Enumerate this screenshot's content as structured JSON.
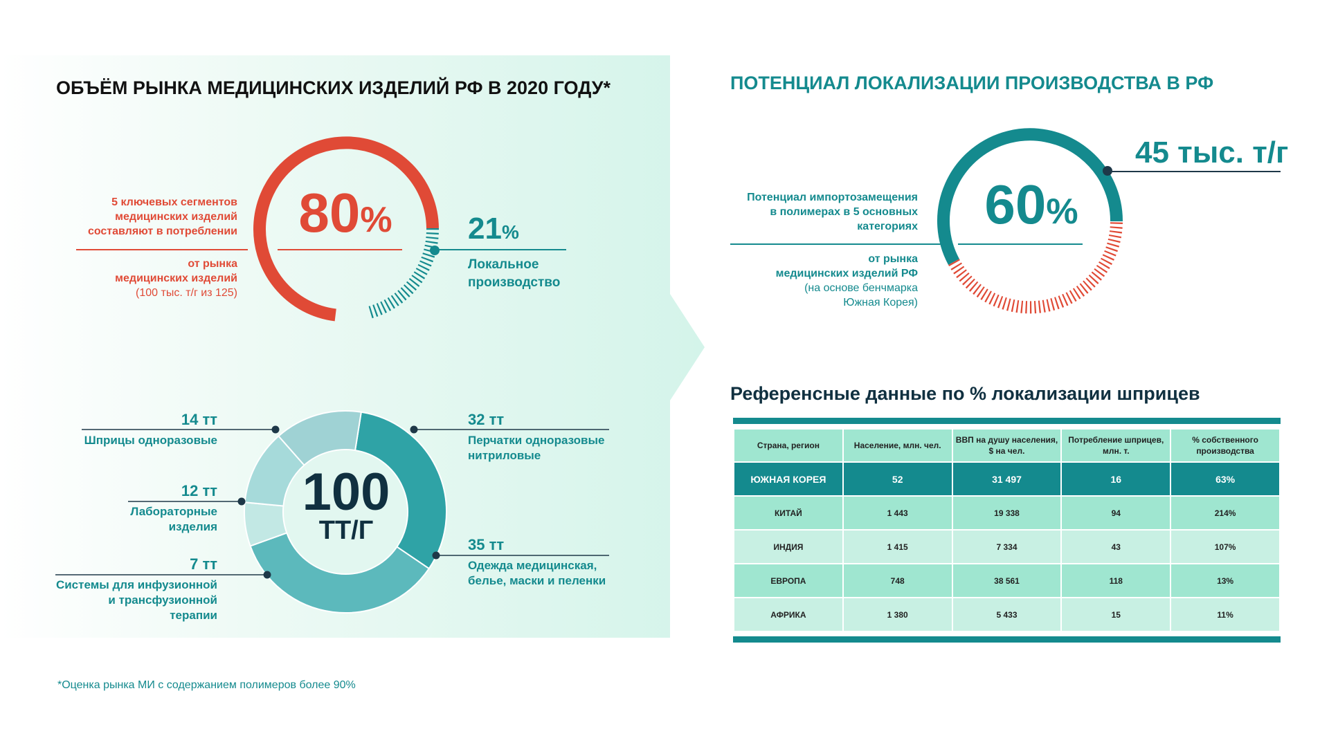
{
  "left": {
    "title": "ОБЪЁМ РЫНКА МЕДИЦИНСКИХ ИЗДЕЛИЙ РФ В 2020 ГОДУ*",
    "segments_text": [
      "5 ключевых сегментов",
      "медицинских изделий",
      "составляют в потреблении"
    ],
    "share_value": "80",
    "share_unit": "%",
    "market_text": [
      "от рынка",
      "медицинских изделий"
    ],
    "market_note": "(100 тыс. т/г из 125)",
    "local_value": "21",
    "local_unit": "%",
    "local_label": [
      "Локальное",
      "производство"
    ],
    "donut_total_value": "100",
    "donut_total_unit": "ТТ/Г",
    "categories": [
      {
        "value": "14 тт",
        "label": [
          "Шприцы одноразовые"
        ]
      },
      {
        "value": "12 тт",
        "label": [
          "Лабораторные",
          "изделия"
        ]
      },
      {
        "value": "7 тт",
        "label": [
          "Системы для инфузионной",
          "и трансфузионной",
          "терапии"
        ]
      },
      {
        "value": "32 тт",
        "label": [
          "Перчатки одноразовые",
          "нитриловые"
        ]
      },
      {
        "value": "35 тт",
        "label": [
          "Одежда медицинская,",
          "белье, маски и пеленки"
        ]
      }
    ],
    "footnote": "*Оценка рынка МИ с содержанием полимеров более 90%"
  },
  "right": {
    "title": "ПОТЕНЦИАЛ ЛОКАЛИЗАЦИИ ПРОИЗВОДСТВА В РФ",
    "potential_value": "60",
    "potential_unit": "%",
    "capacity": "45 тыс. т/г",
    "import_text": [
      "Потенциал импортозамещения",
      "в полимерах в 5 основных",
      "категориях"
    ],
    "market_text": [
      "от рынка",
      "медицинских изделий РФ"
    ],
    "market_note": [
      "(на основе бенчмарка",
      "Южная Корея)"
    ],
    "subtitle": "Референсные данные по % локализации шприцев",
    "table": {
      "headers": [
        "Страна, регион",
        "Население, млн. чел.",
        "ВВП на душу населения, $ на чел.",
        "Потребление шприцев, млн. т.",
        "% собственного производства"
      ],
      "rows": [
        [
          "ЮЖНАЯ КОРЕЯ",
          "52",
          "31 497",
          "16",
          "63%"
        ],
        [
          "КИТАЙ",
          "1 443",
          "19 338",
          "94",
          "214%"
        ],
        [
          "ИНДИЯ",
          "1 415",
          "7 334",
          "43",
          "107%"
        ],
        [
          "ЕВРОПА",
          "748",
          "38 561",
          "118",
          "13%"
        ],
        [
          "АФРИКА",
          "1 380",
          "5 433",
          "15",
          "11%"
        ]
      ]
    }
  },
  "colors": {
    "red": "#e04a36",
    "teal": "#148a8e",
    "navy": "#103040",
    "panel": "#d8f5ec",
    "row_light": "#c8f0e3",
    "row_mid": "#9fe6d0"
  },
  "chart_data": {
    "type": "pie",
    "categories": [
      "Шприцы одноразовые",
      "Лабораторные изделия",
      "Системы для инфузионной и трансфузионной терапии",
      "Перчатки одноразовые нитриловые",
      "Одежда медицинская, белье, маски и пеленки"
    ],
    "values": [
      14,
      12,
      7,
      32,
      35
    ],
    "unit": "тт"
  }
}
